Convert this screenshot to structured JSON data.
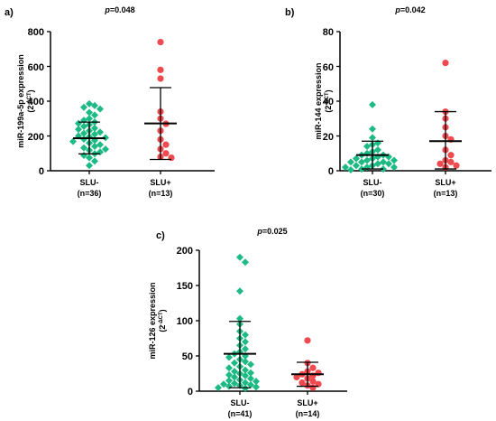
{
  "colors": {
    "green": "#1dba84",
    "red": "#ee4a4f",
    "axis": "#000000"
  },
  "chart_data": [
    {
      "type": "scatter",
      "panel_label": "a)",
      "p_prefix": "p",
      "p_value": "=0.048",
      "ylabel_main": "miR-199a-5p expression",
      "ylabel_unit_base": "(2",
      "ylabel_unit_exp": "-ΔCT",
      "ylabel_unit_close": ")",
      "ylim": [
        0,
        800
      ],
      "yticks": [
        "0",
        "200",
        "400",
        "600",
        "800"
      ],
      "categories": [
        {
          "label": "SLU-",
          "n": "(n=36)"
        },
        {
          "label": "SLU+",
          "n": "(n=13)"
        }
      ],
      "series": [
        {
          "marker": "diamond",
          "color": "#1dba84",
          "mean": 187,
          "sd_low": 97,
          "sd_high": 280,
          "values": [
            385,
            375,
            365,
            355,
            335,
            320,
            300,
            290,
            280,
            272,
            265,
            255,
            245,
            238,
            230,
            222,
            215,
            210,
            200,
            195,
            190,
            182,
            175,
            168,
            160,
            150,
            140,
            132,
            124,
            118,
            108,
            98,
            88,
            75,
            55,
            30
          ]
        },
        {
          "marker": "circle",
          "color": "#ee4a4f",
          "mean": 272,
          "sd_low": 65,
          "sd_high": 478,
          "values": [
            740,
            580,
            530,
            340,
            300,
            270,
            230,
            180,
            150,
            125,
            100,
            80,
            75
          ]
        }
      ]
    },
    {
      "type": "scatter",
      "panel_label": "b)",
      "p_prefix": "p",
      "p_value": "=0.042",
      "ylabel_main": "miR-144 expression",
      "ylabel_unit_base": "(2",
      "ylabel_unit_exp": "-ΔCT",
      "ylabel_unit_close": ")",
      "ylim": [
        0,
        80
      ],
      "yticks": [
        "0",
        "20",
        "40",
        "60",
        "80"
      ],
      "categories": [
        {
          "label": "SLU-",
          "n": "(n=30)"
        },
        {
          "label": "SLU+",
          "n": "(n=13)"
        }
      ],
      "series": [
        {
          "marker": "diamond",
          "color": "#1dba84",
          "mean": 9,
          "sd_low": 1,
          "sd_high": 17,
          "values": [
            38,
            24,
            19,
            16,
            15,
            14,
            12,
            11,
            10,
            9,
            9,
            8,
            8,
            7,
            7,
            6,
            6,
            5,
            5,
            5,
            4,
            4,
            3,
            3,
            2,
            2,
            2,
            1,
            1,
            0.5
          ]
        },
        {
          "marker": "circle",
          "color": "#ee4a4f",
          "mean": 17,
          "sd_low": 1,
          "sd_high": 34,
          "values": [
            62,
            34,
            30,
            25,
            20,
            18,
            12,
            9,
            6,
            5,
            4,
            3,
            2
          ]
        }
      ]
    },
    {
      "type": "scatter",
      "panel_label": "c)",
      "p_prefix": "p",
      "p_value": "=0.025",
      "ylabel_main": "miR-126 expression",
      "ylabel_unit_base": "(2",
      "ylabel_unit_exp": "-ΔCT",
      "ylabel_unit_close": ")",
      "ylim": [
        0,
        200
      ],
      "yticks": [
        "0",
        "50",
        "100",
        "150",
        "200"
      ],
      "categories": [
        {
          "label": "SLU-",
          "n": "(n=41)"
        },
        {
          "label": "SLU+",
          "n": "(n=14)"
        }
      ],
      "series": [
        {
          "marker": "diamond",
          "color": "#1dba84",
          "mean": 53,
          "sd_low": 5,
          "sd_high": 99,
          "values": [
            190,
            183,
            142,
            103,
            95,
            85,
            80,
            75,
            70,
            65,
            60,
            56,
            53,
            50,
            48,
            45,
            42,
            40,
            38,
            35,
            33,
            30,
            28,
            26,
            25,
            23,
            22,
            20,
            18,
            16,
            15,
            14,
            12,
            11,
            10,
            9,
            8,
            7,
            6,
            5,
            4
          ]
        },
        {
          "marker": "circle",
          "color": "#ee4a4f",
          "mean": 24,
          "sd_low": 7,
          "sd_high": 41,
          "values": [
            72,
            40,
            33,
            28,
            26,
            24,
            22,
            20,
            18,
            14,
            12,
            10,
            8,
            5
          ]
        }
      ]
    }
  ]
}
